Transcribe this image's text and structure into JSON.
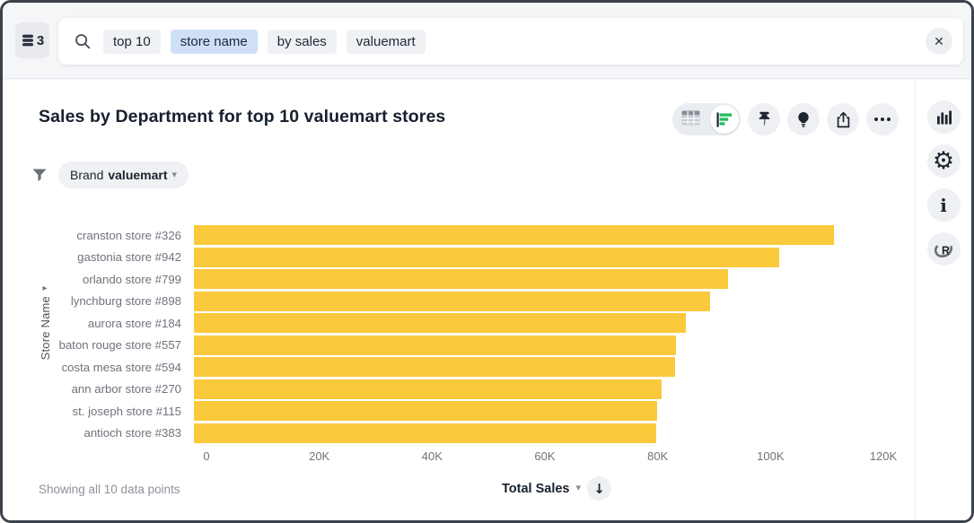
{
  "datasource": {
    "count": "3"
  },
  "search": {
    "tokens": [
      {
        "text": "top 10",
        "highlighted": false
      },
      {
        "text": "store name",
        "highlighted": true
      },
      {
        "text": "by sales",
        "highlighted": false
      },
      {
        "text": "valuemart",
        "highlighted": false
      }
    ],
    "close_label": "✕"
  },
  "header": {
    "title": "Sales by Department for top 10 valuemart stores"
  },
  "filters": {
    "label": "Brand",
    "value": "valuemart",
    "caret": "▾"
  },
  "chart_data": {
    "type": "bar",
    "orientation": "horizontal",
    "title": "Sales by Department for top 10 valuemart stores",
    "categories": [
      "cranston store #326",
      "gastonia store #942",
      "orlando store #799",
      "lynchburg store #898",
      "aurora store #184",
      "baton rouge store #557",
      "costa mesa store #594",
      "ann arbor store #270",
      "st. joseph store #115",
      "antioch store #383"
    ],
    "values": [
      113500,
      103800,
      94700,
      91500,
      87200,
      85400,
      85300,
      82900,
      82100,
      81900
    ],
    "xlabel": "Total Sales",
    "ylabel": "Store Name",
    "xlim": [
      0,
      120000
    ],
    "x_ticks": [
      "0",
      "20K",
      "40K",
      "60K",
      "80K",
      "100K",
      "120K"
    ],
    "grid": false,
    "legend": "none",
    "sort": "descending",
    "bar_color": "#fbc93c"
  },
  "footer": {
    "status": "Showing all 10 data points",
    "sort_label": "Total Sales",
    "sort_caret": "▾",
    "sort_direction_arrow": "↓"
  },
  "y_axis": {
    "expand_arrow": "▸"
  },
  "colors": {
    "bar_yellow": "#fbc93c",
    "accent_green": "#24bd62",
    "text_dark": "#1d232f",
    "text_gray": "#6e737c",
    "token_highlight_blue": "#cfe0f6",
    "surface_gray": "#f5f6f8",
    "window_border": "#3c424b"
  }
}
